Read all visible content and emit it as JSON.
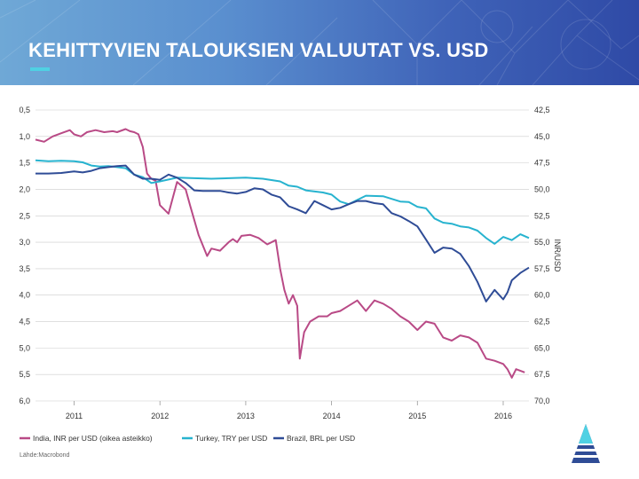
{
  "header": {
    "title": "KEHITTYVIEN TALOUKSIEN VALUUTAT VS. USD"
  },
  "source": "Lähde:Macrobond",
  "colors": {
    "india": "#b94a86",
    "turkey": "#27b3cf",
    "brazil": "#2f4c96",
    "grid": "#cccccc"
  },
  "chart_data": {
    "type": "line",
    "title": "",
    "xlabel": "",
    "left_axis": {
      "label": "",
      "ticks": [
        "0,5",
        "1,0",
        "1,5",
        "2,0",
        "2,5",
        "3,0",
        "3,5",
        "4,0",
        "4,5",
        "5,0",
        "5,5",
        "6,0"
      ],
      "range": [
        0.5,
        6.0
      ],
      "inverted": true
    },
    "right_axis": {
      "label": "INR/USD",
      "ticks": [
        "42,5",
        "45,0",
        "47,5",
        "50,0",
        "52,5",
        "55,0",
        "57,5",
        "60,0",
        "62,5",
        "65,0",
        "67,5",
        "70,0"
      ],
      "range": [
        42.5,
        70.0
      ],
      "inverted": true
    },
    "x_ticks": [
      "2011",
      "2012",
      "2013",
      "2014",
      "2015",
      "2016"
    ],
    "x_range": [
      2010.55,
      2016.3
    ],
    "legend": [
      "India, INR per USD (oikea asteikko)",
      "Turkey, TRY per USD",
      "Brazil, BRL per USD"
    ],
    "series": [
      {
        "name": "India, INR per USD (oikea asteikko)",
        "axis": "right",
        "x": [
          2010.55,
          2010.65,
          2010.75,
          2010.85,
          2010.95,
          2011.0,
          2011.08,
          2011.15,
          2011.25,
          2011.35,
          2011.45,
          2011.5,
          2011.6,
          2011.65,
          2011.7,
          2011.75,
          2011.8,
          2011.85,
          2011.9,
          2011.95,
          2012.0,
          2012.1,
          2012.2,
          2012.3,
          2012.35,
          2012.45,
          2012.55,
          2012.6,
          2012.7,
          2012.8,
          2012.85,
          2012.9,
          2012.95,
          2013.05,
          2013.15,
          2013.25,
          2013.35,
          2013.4,
          2013.45,
          2013.5,
          2013.55,
          2013.6,
          2013.63,
          2013.68,
          2013.75,
          2013.85,
          2013.95,
          2014.0,
          2014.1,
          2014.2,
          2014.3,
          2014.4,
          2014.5,
          2014.6,
          2014.7,
          2014.8,
          2014.9,
          2015.0,
          2015.1,
          2015.2,
          2015.3,
          2015.4,
          2015.5,
          2015.6,
          2015.7,
          2015.8,
          2015.9,
          2016.0,
          2016.05,
          2016.1,
          2016.15,
          2016.25
        ],
        "y": [
          45.3,
          45.5,
          45.0,
          44.7,
          44.4,
          44.8,
          45.0,
          44.6,
          44.4,
          44.6,
          44.5,
          44.6,
          44.3,
          44.5,
          44.6,
          44.8,
          46.0,
          48.5,
          49.0,
          49.2,
          51.5,
          52.3,
          49.3,
          50.0,
          51.5,
          54.3,
          56.3,
          55.6,
          55.8,
          55.0,
          54.7,
          55.0,
          54.4,
          54.3,
          54.6,
          55.2,
          54.8,
          57.5,
          59.5,
          60.8,
          60.0,
          61.0,
          66.0,
          63.5,
          62.5,
          62.0,
          62.0,
          61.7,
          61.5,
          61.0,
          60.5,
          61.5,
          60.5,
          60.8,
          61.3,
          62.0,
          62.5,
          63.3,
          62.5,
          62.7,
          64.0,
          64.3,
          63.8,
          64.0,
          64.5,
          66.0,
          66.2,
          66.5,
          67.0,
          67.8,
          67.0,
          67.3
        ]
      },
      {
        "name": "Turkey, TRY per USD",
        "axis": "left",
        "x": [
          2010.55,
          2010.7,
          2010.85,
          2011.0,
          2011.1,
          2011.2,
          2011.3,
          2011.4,
          2011.5,
          2011.6,
          2011.7,
          2011.8,
          2011.9,
          2012.0,
          2012.2,
          2012.4,
          2012.6,
          2012.8,
          2013.0,
          2013.2,
          2013.4,
          2013.5,
          2013.6,
          2013.7,
          2013.9,
          2014.0,
          2014.1,
          2014.2,
          2014.4,
          2014.6,
          2014.8,
          2014.9,
          2015.0,
          2015.1,
          2015.2,
          2015.3,
          2015.4,
          2015.5,
          2015.6,
          2015.7,
          2015.8,
          2015.9,
          2016.0,
          2016.1,
          2016.2,
          2016.3
        ],
        "y": [
          1.45,
          1.47,
          1.46,
          1.47,
          1.49,
          1.55,
          1.57,
          1.56,
          1.58,
          1.6,
          1.72,
          1.77,
          1.88,
          1.85,
          1.78,
          1.79,
          1.8,
          1.79,
          1.78,
          1.8,
          1.85,
          1.93,
          1.95,
          2.02,
          2.06,
          2.1,
          2.23,
          2.28,
          2.12,
          2.13,
          2.23,
          2.24,
          2.33,
          2.36,
          2.55,
          2.63,
          2.65,
          2.7,
          2.72,
          2.78,
          2.92,
          3.03,
          2.9,
          2.96,
          2.85,
          2.92
        ]
      },
      {
        "name": "Brazil, BRL per USD",
        "axis": "left",
        "x": [
          2010.55,
          2010.7,
          2010.85,
          2011.0,
          2011.1,
          2011.2,
          2011.3,
          2011.4,
          2011.5,
          2011.6,
          2011.7,
          2011.8,
          2011.9,
          2012.0,
          2012.1,
          2012.2,
          2012.3,
          2012.4,
          2012.5,
          2012.6,
          2012.7,
          2012.8,
          2012.9,
          2013.0,
          2013.1,
          2013.2,
          2013.3,
          2013.4,
          2013.5,
          2013.6,
          2013.7,
          2013.8,
          2013.9,
          2014.0,
          2014.1,
          2014.2,
          2014.3,
          2014.4,
          2014.5,
          2014.6,
          2014.7,
          2014.8,
          2014.9,
          2015.0,
          2015.1,
          2015.2,
          2015.3,
          2015.4,
          2015.5,
          2015.6,
          2015.7,
          2015.8,
          2015.9,
          2016.0,
          2016.05,
          2016.1,
          2016.2,
          2016.3
        ],
        "y": [
          1.7,
          1.7,
          1.69,
          1.66,
          1.68,
          1.65,
          1.6,
          1.58,
          1.56,
          1.55,
          1.72,
          1.8,
          1.8,
          1.82,
          1.72,
          1.78,
          1.88,
          2.02,
          2.03,
          2.03,
          2.03,
          2.06,
          2.08,
          2.05,
          1.98,
          2.0,
          2.1,
          2.15,
          2.32,
          2.38,
          2.45,
          2.22,
          2.3,
          2.38,
          2.35,
          2.28,
          2.22,
          2.22,
          2.26,
          2.28,
          2.45,
          2.51,
          2.6,
          2.7,
          2.95,
          3.2,
          3.1,
          3.12,
          3.22,
          3.45,
          3.75,
          4.12,
          3.9,
          4.08,
          3.95,
          3.72,
          3.58,
          3.48
        ]
      }
    ]
  }
}
